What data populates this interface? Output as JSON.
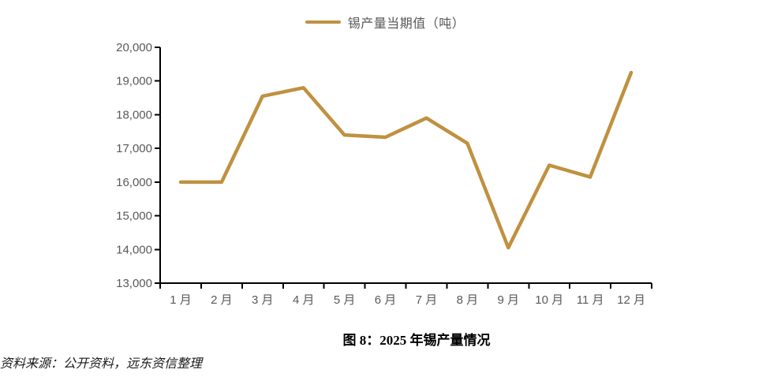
{
  "legend": {
    "label": "锡产量当期值（吨）"
  },
  "caption": "图 8：2025 年锡产量情况",
  "source": "资料来源：公开资料，远东资信整理",
  "colors": {
    "line": "#BF9140",
    "axis": "#000000",
    "tick_label": "#595959",
    "title": "#000000"
  },
  "chart_data": {
    "type": "line",
    "title": "图 8：2025 年锡产量情况",
    "legend_entries": [
      "锡产量当期值（吨）"
    ],
    "legend_position": "top-center",
    "categories": [
      "1 月",
      "2 月",
      "3 月",
      "4 月",
      "5 月",
      "6 月",
      "7 月",
      "8 月",
      "9 月",
      "10 月",
      "11 月",
      "12 月"
    ],
    "series": [
      {
        "name": "锡产量当期值（吨）",
        "values": [
          16000,
          16000,
          18550,
          18800,
          17400,
          17330,
          17900,
          17150,
          14050,
          16500,
          16150,
          19250
        ]
      }
    ],
    "xlabel": "",
    "ylabel": "",
    "ylim": [
      13000,
      20000
    ],
    "ytick_step": 1000,
    "ytick_labels": [
      "13,000",
      "14,000",
      "15,000",
      "16,000",
      "17,000",
      "18,000",
      "19,000",
      "20,000"
    ],
    "grid": false
  }
}
